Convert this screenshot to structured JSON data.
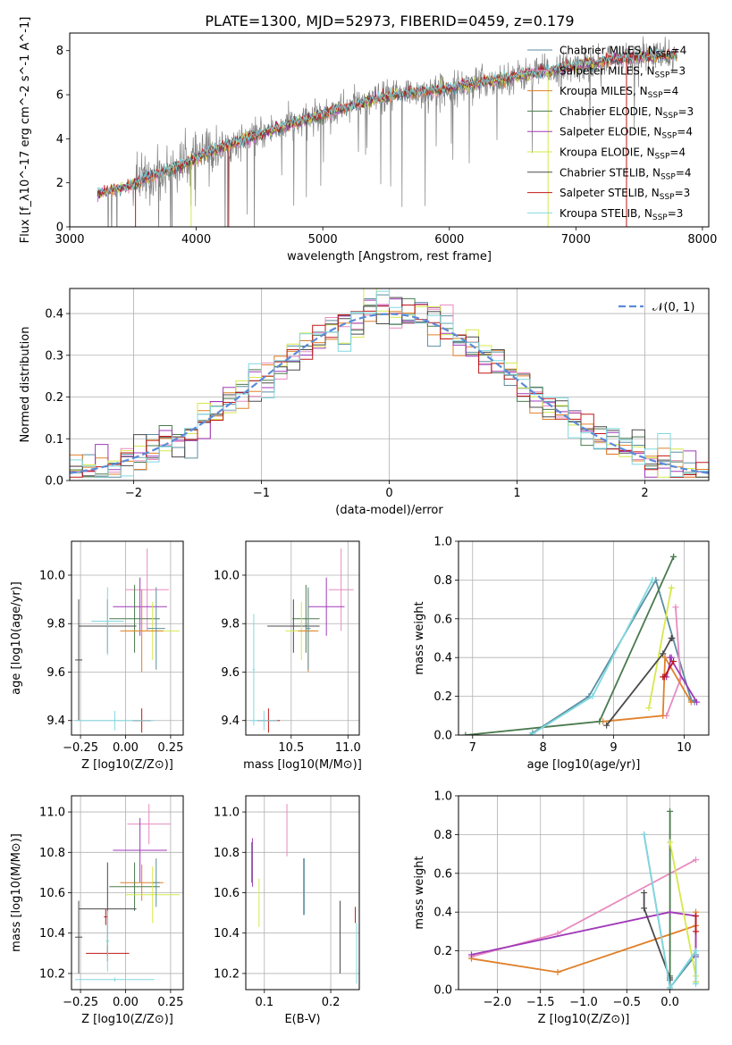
{
  "figure_title": "PLATE=1300, MJD=52973, FIBERID=0459, z=0.179",
  "colors": {
    "chabrier_miles": "#5b8ea0",
    "salpeter_miles": "#e88ac0",
    "kroupa_miles": "#e0802a",
    "chabrier_elodie": "#4a7a4e",
    "salpeter_elodie": "#a03ab8",
    "kroupa_elodie": "#d6e84a",
    "chabrier_stelib": "#4a4a4a",
    "salpeter_stelib": "#c01818",
    "kroupa_stelib": "#80d8e0",
    "normal": "#5b8bd8",
    "data": "#808080"
  },
  "chart_data": [
    {
      "id": "spectrum",
      "type": "line",
      "xlabel": "wavelength [Angstrom, rest frame]",
      "ylabel": "Flux [f_λ10^-17 erg cm^-2 s^-1 A^-1]",
      "xlim": [
        3000,
        8050
      ],
      "ylim": [
        0,
        8.8
      ],
      "xticks": [
        "3000",
        "4000",
        "5000",
        "6000",
        "7000",
        "8000"
      ],
      "yticks": [
        "0",
        "2",
        "4",
        "6",
        "8"
      ],
      "grid": false,
      "legend_position": "right",
      "x_range_data": [
        3220,
        7800
      ],
      "continuum_x": [
        3220,
        3500,
        3600,
        3800,
        4000,
        4100,
        4300,
        4500,
        4700,
        4900,
        5100,
        5300,
        5500,
        5700,
        5900,
        6100,
        6300,
        6500,
        6700,
        6900,
        7100,
        7300,
        7500,
        7800
      ],
      "continuum_y": [
        1.5,
        1.9,
        2.2,
        2.6,
        3.1,
        3.4,
        3.8,
        4.2,
        4.6,
        4.9,
        5.3,
        5.6,
        5.9,
        6.1,
        6.2,
        6.4,
        6.6,
        6.8,
        7.0,
        7.2,
        7.4,
        7.6,
        7.7,
        7.8
      ],
      "series": [
        {
          "name": "Chabrier MILES, N_SSP=4",
          "color_key": "chabrier_miles"
        },
        {
          "name": "Salpeter MILES, N_SSP=3",
          "color_key": "salpeter_miles"
        },
        {
          "name": "Kroupa MILES, N_SSP=4",
          "color_key": "kroupa_miles"
        },
        {
          "name": "Chabrier ELODIE, N_SSP=3",
          "color_key": "chabrier_elodie"
        },
        {
          "name": "Salpeter ELODIE, N_SSP=4",
          "color_key": "salpeter_elodie"
        },
        {
          "name": "Kroupa ELODIE, N_SSP=4",
          "color_key": "kroupa_elodie"
        },
        {
          "name": "Chabrier STELIB, N_SSP=4",
          "color_key": "chabrier_stelib"
        },
        {
          "name": "Salpeter STELIB, N_SSP=3",
          "color_key": "salpeter_stelib"
        },
        {
          "name": "Kroupa STELIB, N_SSP=3",
          "color_key": "kroupa_stelib"
        }
      ]
    },
    {
      "id": "residuals",
      "type": "line",
      "xlabel": "(data-model)/error",
      "ylabel": "Normed distribution",
      "xlim": [
        -2.5,
        2.5
      ],
      "ylim": [
        0,
        0.46
      ],
      "xticks": [
        "−2",
        "−1",
        "0",
        "1",
        "2"
      ],
      "yticks": [
        "0.0",
        "0.1",
        "0.2",
        "0.3",
        "0.4"
      ],
      "grid": true,
      "legend_position": "top-right",
      "normal_label": "𝒩(0, 1)",
      "bin_width": 0.1
    },
    {
      "id": "age_vs_Z",
      "type": "scatter",
      "xlabel": "Z [log10(Z/Z⊙)]",
      "ylabel": "age  [log10(age/yr)]",
      "xlim": [
        -0.3,
        0.32
      ],
      "ylim": [
        9.34,
        10.14
      ],
      "xticks": [
        "−0.25",
        "0.00",
        "0.25"
      ],
      "yticks": [
        "9.4",
        "9.6",
        "9.8",
        "10.0"
      ],
      "grid": true,
      "points": [
        {
          "color_key": "salpeter_miles",
          "x": 0.12,
          "xerr": 0.12,
          "y": 9.94,
          "yerr": 0.17
        },
        {
          "color_key": "salpeter_elodie",
          "x": 0.08,
          "xerr": 0.15,
          "y": 9.87,
          "yerr": 0.12
        },
        {
          "color_key": "chabrier_elodie",
          "x": 0.05,
          "xerr": 0.14,
          "y": 9.82,
          "yerr": 0.14
        },
        {
          "color_key": "chabrier_stelib",
          "x": -0.1,
          "xerr": 0.16,
          "y": 9.79,
          "yerr": 0.11
        },
        {
          "color_key": "kroupa_elodie",
          "x": 0.15,
          "xerr": 0.15,
          "y": 9.77,
          "yerr": 0.12
        },
        {
          "color_key": "kroupa_miles",
          "x": 0.09,
          "xerr": 0.12,
          "y": 9.77,
          "yerr": 0.17
        },
        {
          "color_key": "chabrier_miles",
          "x": 0.17,
          "xerr": 0.05,
          "y": 9.78,
          "yerr": 0.17
        },
        {
          "color_key": "kroupa_stelib",
          "x": -0.1,
          "xerr": 0.09,
          "y": 9.81,
          "yerr": 0.14
        },
        {
          "color_key": "salpeter_stelib",
          "x": 0.09,
          "xerr": 0.05,
          "y": 9.4,
          "yerr": 0.05
        },
        {
          "color_key": "chabrier_stelib",
          "x": -0.26,
          "xerr": 0.02,
          "y": 9.65,
          "yerr": 0.25
        },
        {
          "color_key": "kroupa_stelib",
          "x": -0.06,
          "xerr": 0.22,
          "y": 9.4,
          "yerr": 0.04
        }
      ]
    },
    {
      "id": "age_vs_mass",
      "type": "scatter",
      "xlabel": "mass [log10(M/M⊙)]",
      "ylabel": "",
      "xlim": [
        10.1,
        11.1
      ],
      "ylim": [
        9.34,
        10.14
      ],
      "xticks": [
        "10.5",
        "11.0"
      ],
      "yticks": [
        "9.4",
        "9.6",
        "9.8",
        "10.0"
      ],
      "grid": true,
      "points": [
        {
          "color_key": "salpeter_miles",
          "x": 10.94,
          "xerr": 0.11,
          "y": 9.94,
          "yerr": 0.17
        },
        {
          "color_key": "salpeter_elodie",
          "x": 10.81,
          "xerr": 0.16,
          "y": 9.87,
          "yerr": 0.12
        },
        {
          "color_key": "chabrier_elodie",
          "x": 10.63,
          "xerr": 0.12,
          "y": 9.82,
          "yerr": 0.14
        },
        {
          "color_key": "chabrier_stelib",
          "x": 10.52,
          "xerr": 0.23,
          "y": 9.79,
          "yerr": 0.11
        },
        {
          "color_key": "kroupa_elodie",
          "x": 10.59,
          "xerr": 0.14,
          "y": 9.77,
          "yerr": 0.12
        },
        {
          "color_key": "kroupa_miles",
          "x": 10.65,
          "xerr": 0.09,
          "y": 9.77,
          "yerr": 0.17
        },
        {
          "color_key": "chabrier_miles",
          "x": 10.65,
          "xerr": 0.02,
          "y": 9.78,
          "yerr": 0.17
        },
        {
          "color_key": "kroupa_stelib",
          "x": 10.17,
          "xerr": 0.01,
          "y": 9.61,
          "yerr": 0.23
        },
        {
          "color_key": "salpeter_stelib",
          "x": 10.3,
          "xerr": 0.1,
          "y": 9.4,
          "yerr": 0.05
        },
        {
          "color_key": "kroupa_stelib",
          "x": 10.26,
          "xerr": 0.12,
          "y": 9.4,
          "yerr": 0.04
        }
      ]
    },
    {
      "id": "weight_vs_age",
      "type": "line",
      "xlabel": "age  [log10(age/yr)]",
      "ylabel": "mass weight",
      "xlim": [
        6.8,
        10.35
      ],
      "ylim": [
        0,
        1.0
      ],
      "xticks": [
        "7",
        "8",
        "9",
        "10"
      ],
      "yticks": [
        "0.0",
        "0.2",
        "0.4",
        "0.6",
        "0.8",
        "1.0"
      ],
      "grid": true,
      "series": [
        {
          "color_key": "chabrier_miles",
          "x": [
            7.85,
            8.65,
            9.6,
            10.1,
            10.15
          ],
          "y": [
            0.01,
            0.2,
            0.8,
            0.18,
            0.17
          ]
        },
        {
          "color_key": "salpeter_miles",
          "x": [
            9.75,
            9.95,
            9.88
          ],
          "y": [
            0.1,
            0.29,
            0.66
          ]
        },
        {
          "color_key": "kroupa_miles",
          "x": [
            8.85,
            9.7,
            9.73,
            10.1
          ],
          "y": [
            0.07,
            0.1,
            0.4,
            0.17
          ]
        },
        {
          "color_key": "chabrier_elodie",
          "x": [
            6.9,
            8.8,
            9.85,
            9.85
          ],
          "y": [
            0.0,
            0.07,
            0.92,
            0.92
          ]
        },
        {
          "color_key": "salpeter_elodie",
          "x": [
            9.75,
            9.82,
            9.8,
            10.18
          ],
          "y": [
            0.3,
            0.4,
            0.4,
            0.17
          ]
        },
        {
          "color_key": "kroupa_elodie",
          "x": [
            9.5,
            9.82,
            9.82
          ],
          "y": [
            0.14,
            0.76,
            0.76
          ]
        },
        {
          "color_key": "chabrier_stelib",
          "x": [
            8.9,
            9.7,
            9.82,
            9.83
          ],
          "y": [
            0.05,
            0.42,
            0.5,
            0.5
          ]
        },
        {
          "color_key": "salpeter_stelib",
          "x": [
            9.7,
            9.72,
            9.85
          ],
          "y": [
            0.3,
            0.3,
            0.38
          ]
        },
        {
          "color_key": "kroupa_stelib",
          "x": [
            7.82,
            8.7,
            9.55,
            9.55
          ],
          "y": [
            0.0,
            0.2,
            0.8,
            0.8
          ]
        }
      ]
    },
    {
      "id": "mass_vs_Z",
      "type": "scatter",
      "xlabel": "Z [log10(Z/Z⊙)]",
      "ylabel": "mass [log10(M/M⊙)]",
      "xlim": [
        -0.3,
        0.32
      ],
      "ylim": [
        10.12,
        11.08
      ],
      "xticks": [
        "−0.25",
        "0.00",
        "0.25"
      ],
      "yticks": [
        "10.2",
        "10.4",
        "10.6",
        "10.8",
        "11.0"
      ],
      "grid": true,
      "points": [
        {
          "color_key": "salpeter_miles",
          "x": 0.13,
          "xerr": 0.12,
          "y": 10.94,
          "yerr": 0.1
        },
        {
          "color_key": "salpeter_elodie",
          "x": 0.08,
          "xerr": 0.15,
          "y": 10.81,
          "yerr": 0.16
        },
        {
          "color_key": "kroupa_miles",
          "x": 0.09,
          "xerr": 0.12,
          "y": 10.65,
          "yerr": 0.09
        },
        {
          "color_key": "chabrier_elodie",
          "x": 0.05,
          "xerr": 0.14,
          "y": 10.63,
          "yerr": 0.12
        },
        {
          "color_key": "kroupa_elodie",
          "x": 0.15,
          "xerr": 0.15,
          "y": 10.59,
          "yerr": 0.14
        },
        {
          "color_key": "chabrier_miles",
          "x": 0.17,
          "xerr": 0.02,
          "y": 10.65,
          "yerr": 0.12
        },
        {
          "color_key": "chabrier_stelib",
          "x": -0.1,
          "xerr": 0.16,
          "y": 10.52,
          "yerr": 0.23
        },
        {
          "color_key": "chabrier_stelib",
          "x": -0.26,
          "xerr": 0.02,
          "y": 10.38,
          "yerr": 0.18
        },
        {
          "color_key": "salpeter_stelib",
          "x": -0.1,
          "xerr": 0.12,
          "y": 10.3,
          "yerr": 0.04
        },
        {
          "color_key": "salpeter_stelib",
          "x": -0.11,
          "xerr": 0.01,
          "y": 10.48,
          "yerr": 0.04
        },
        {
          "color_key": "kroupa_stelib",
          "x": -0.06,
          "xerr": 0.22,
          "y": 10.17,
          "yerr": 0.01
        },
        {
          "color_key": "kroupa_stelib",
          "x": -0.1,
          "xerr": 0.01,
          "y": 10.36,
          "yerr": 0.15
        }
      ]
    },
    {
      "id": "mass_vs_ebv",
      "type": "scatter",
      "xlabel": "E(B-V)",
      "ylabel": "",
      "xlim": [
        0.072,
        0.243
      ],
      "ylim": [
        10.12,
        11.08
      ],
      "xticks": [
        "0.1",
        "0.2"
      ],
      "yticks": [
        "10.2",
        "10.4",
        "10.6",
        "10.8",
        "11.0"
      ],
      "grid": true,
      "points": [
        {
          "color_key": "salpeter_miles",
          "x": 0.134,
          "y": 10.91,
          "yerr": 0.13
        },
        {
          "color_key": "salpeter_elodie",
          "x": 0.082,
          "y": 10.75,
          "yerr": 0.12
        },
        {
          "color_key": "kroupa_elodie",
          "x": 0.092,
          "y": 10.55,
          "yerr": 0.12
        },
        {
          "color_key": "kroupa_miles",
          "x": 0.159,
          "y": 10.63,
          "yerr": 0.14
        },
        {
          "color_key": "chabrier_miles",
          "x": 0.16,
          "y": 10.63,
          "yerr": 0.14
        },
        {
          "color_key": "chabrier_stelib",
          "x": 0.214,
          "y": 10.38,
          "yerr": 0.18
        },
        {
          "color_key": "salpeter_stelib",
          "x": 0.237,
          "y": 10.49,
          "yerr": 0.04
        },
        {
          "color_key": "kroupa_stelib",
          "x": 0.239,
          "y": 10.3,
          "yerr": 0.15
        },
        {
          "color_key": "chabrier_elodie",
          "x": 0.081,
          "y": 10.75,
          "yerr": 0.1
        }
      ]
    },
    {
      "id": "weight_vs_Z",
      "type": "line",
      "xlabel": "Z [log10(Z/Z⊙)]",
      "ylabel": "mass weight",
      "xlim": [
        -2.45,
        0.45
      ],
      "ylim": [
        0,
        1.0
      ],
      "xticks": [
        "−2.0",
        "−1.5",
        "−1.0",
        "−0.5",
        "0.0"
      ],
      "yticks": [
        "0.0",
        "0.2",
        "0.4",
        "0.6",
        "0.8",
        "1.0"
      ],
      "grid": true,
      "series": [
        {
          "color_key": "chabrier_miles",
          "x": [
            -0.3,
            0.0,
            0.3,
            0.3
          ],
          "y": [
            0.8,
            0.01,
            0.18,
            0.17
          ]
        },
        {
          "color_key": "salpeter_miles",
          "x": [
            -2.3,
            -1.3,
            0.3
          ],
          "y": [
            0.17,
            0.29,
            0.67
          ]
        },
        {
          "color_key": "kroupa_miles",
          "x": [
            -2.3,
            -1.3,
            0.3,
            0.3,
            0.3
          ],
          "y": [
            0.16,
            0.09,
            0.33,
            0.4,
            0.04
          ]
        },
        {
          "color_key": "chabrier_elodie",
          "x": [
            0.0,
            0.0,
            0.0
          ],
          "y": [
            0.92,
            0.07,
            0.0
          ]
        },
        {
          "color_key": "salpeter_elodie",
          "x": [
            -2.3,
            0.0,
            0.3,
            0.3
          ],
          "y": [
            0.18,
            0.4,
            0.38,
            0.17
          ]
        },
        {
          "color_key": "kroupa_elodie",
          "x": [
            0.0,
            0.3,
            0.3
          ],
          "y": [
            0.76,
            0.07,
            0.04
          ]
        },
        {
          "color_key": "chabrier_stelib",
          "x": [
            -0.3,
            -0.3,
            0.0,
            0.0
          ],
          "y": [
            0.5,
            0.42,
            0.06,
            0.05
          ]
        },
        {
          "color_key": "salpeter_stelib",
          "x": [
            0.3,
            0.3
          ],
          "y": [
            0.3,
            0.38
          ]
        },
        {
          "color_key": "kroupa_stelib",
          "x": [
            -0.3,
            0.0,
            0.3,
            0.3
          ],
          "y": [
            0.8,
            0.01,
            0.2,
            0.03
          ]
        }
      ]
    }
  ]
}
